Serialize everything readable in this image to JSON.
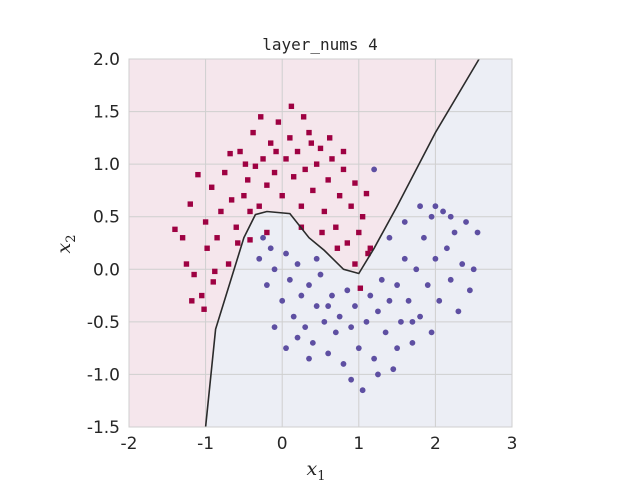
{
  "chart_data": {
    "type": "scatter",
    "title": "layer_nums 4",
    "xlabel": {
      "main": "x",
      "sub": "1"
    },
    "ylabel": {
      "main": "x",
      "sub": "2"
    },
    "xlim": [
      -2,
      3
    ],
    "ylim": [
      -1.5,
      2.0
    ],
    "xticks": [
      -2,
      -1,
      0,
      1,
      2,
      3
    ],
    "xtick_labels": [
      "-2",
      "-1",
      "0",
      "1",
      "2",
      "3"
    ],
    "yticks": [
      -1.5,
      -1.0,
      -0.5,
      0.0,
      0.5,
      1.0,
      1.5,
      2.0
    ],
    "ytick_labels": [
      "-1.5",
      "-1.0",
      "-0.5",
      "0.0",
      "0.5",
      "1.0",
      "1.5",
      "2.0"
    ],
    "grid": true,
    "background_regions": {
      "class_0_color": "#f5e6ec",
      "class_1_color": "#eceef5"
    },
    "decision_boundary": [
      [
        -1.0,
        -1.5
      ],
      [
        -0.87,
        -0.57
      ],
      [
        -0.5,
        0.3
      ],
      [
        -0.35,
        0.52
      ],
      [
        -0.2,
        0.55
      ],
      [
        0.1,
        0.53
      ],
      [
        0.35,
        0.3
      ],
      [
        0.55,
        0.18
      ],
      [
        0.8,
        0.0
      ],
      [
        1.0,
        -0.04
      ],
      [
        1.2,
        0.2
      ],
      [
        1.5,
        0.6
      ],
      [
        2.0,
        1.3
      ],
      [
        2.57,
        2.0
      ]
    ],
    "series": [
      {
        "marker": "square",
        "color": "#9e0142",
        "points": [
          [
            -1.0,
            0.45
          ],
          [
            -0.92,
            0.78
          ],
          [
            -0.85,
            0.3
          ],
          [
            -0.8,
            0.55
          ],
          [
            -0.75,
            0.92
          ],
          [
            -0.7,
            0.05
          ],
          [
            -0.66,
            0.66
          ],
          [
            -0.6,
            0.4
          ],
          [
            -0.55,
            1.12
          ],
          [
            -0.5,
            0.7
          ],
          [
            -0.45,
            0.85
          ],
          [
            -0.42,
            0.28
          ],
          [
            -0.38,
            1.3
          ],
          [
            -0.35,
            0.98
          ],
          [
            -0.3,
            0.6
          ],
          [
            -0.25,
            1.05
          ],
          [
            -0.2,
            0.8
          ],
          [
            -0.15,
            1.2
          ],
          [
            -0.1,
            0.92
          ],
          [
            -0.05,
            1.4
          ],
          [
            0.0,
            0.7
          ],
          [
            0.05,
            1.05
          ],
          [
            0.1,
            1.25
          ],
          [
            0.15,
            0.88
          ],
          [
            0.2,
            1.12
          ],
          [
            0.25,
            0.6
          ],
          [
            0.3,
            0.95
          ],
          [
            0.35,
            1.3
          ],
          [
            0.4,
            0.75
          ],
          [
            0.45,
            1.0
          ],
          [
            0.5,
            1.15
          ],
          [
            0.55,
            0.55
          ],
          [
            0.6,
            0.85
          ],
          [
            0.65,
            1.05
          ],
          [
            0.7,
            0.4
          ],
          [
            0.75,
            0.7
          ],
          [
            0.8,
            0.95
          ],
          [
            0.85,
            0.25
          ],
          [
            0.9,
            0.6
          ],
          [
            0.95,
            0.82
          ],
          [
            1.0,
            0.35
          ],
          [
            1.05,
            0.5
          ],
          [
            1.1,
            0.72
          ],
          [
            1.15,
            0.2
          ],
          [
            -1.3,
            0.3
          ],
          [
            -1.25,
            0.05
          ],
          [
            -1.2,
            0.62
          ],
          [
            -1.15,
            -0.05
          ],
          [
            -1.1,
            0.9
          ],
          [
            -1.05,
            -0.25
          ],
          [
            -0.98,
            0.2
          ],
          [
            -0.9,
            -0.12
          ],
          [
            -1.4,
            0.38
          ],
          [
            -0.58,
            0.25
          ],
          [
            -0.68,
            1.1
          ],
          [
            -0.28,
            1.45
          ],
          [
            0.12,
            1.55
          ],
          [
            0.28,
            1.45
          ],
          [
            0.62,
            1.25
          ],
          [
            0.8,
            1.12
          ],
          [
            -0.48,
            1.0
          ],
          [
            -0.08,
            1.12
          ],
          [
            0.38,
            1.2
          ],
          [
            0.72,
            0.2
          ],
          [
            0.95,
            0.05
          ],
          [
            0.25,
            0.4
          ],
          [
            -0.88,
            -0.02
          ],
          [
            -1.18,
            -0.3
          ],
          [
            -1.02,
            -0.38
          ],
          [
            -0.42,
            0.55
          ],
          [
            0.52,
            0.35
          ],
          [
            1.02,
            -0.18
          ],
          [
            1.12,
            0.15
          ],
          [
            -0.2,
            0.35
          ]
        ]
      },
      {
        "marker": "circle",
        "color": "#5e4fa2",
        "points": [
          [
            -0.3,
            0.1
          ],
          [
            -0.2,
            -0.15
          ],
          [
            -0.15,
            0.2
          ],
          [
            -0.1,
            0.0
          ],
          [
            0.0,
            -0.3
          ],
          [
            0.05,
            0.15
          ],
          [
            0.1,
            -0.1
          ],
          [
            0.15,
            -0.45
          ],
          [
            0.2,
            0.05
          ],
          [
            0.25,
            -0.25
          ],
          [
            0.3,
            -0.55
          ],
          [
            0.35,
            -0.15
          ],
          [
            0.4,
            -0.7
          ],
          [
            0.45,
            -0.35
          ],
          [
            0.5,
            -0.05
          ],
          [
            0.55,
            -0.5
          ],
          [
            0.6,
            -0.8
          ],
          [
            0.65,
            -0.25
          ],
          [
            0.7,
            -0.6
          ],
          [
            0.75,
            -0.45
          ],
          [
            0.8,
            -0.9
          ],
          [
            0.85,
            -0.2
          ],
          [
            0.9,
            -0.55
          ],
          [
            0.95,
            -0.35
          ],
          [
            1.0,
            -0.75
          ],
          [
            1.05,
            -1.15
          ],
          [
            1.1,
            -0.5
          ],
          [
            1.15,
            -0.25
          ],
          [
            1.2,
            -0.85
          ],
          [
            1.25,
            -0.4
          ],
          [
            1.3,
            -0.1
          ],
          [
            1.35,
            -0.6
          ],
          [
            1.4,
            -0.3
          ],
          [
            1.45,
            -0.95
          ],
          [
            1.5,
            -0.15
          ],
          [
            1.55,
            -0.5
          ],
          [
            1.6,
            0.1
          ],
          [
            1.65,
            -0.3
          ],
          [
            1.7,
            -0.7
          ],
          [
            1.75,
            0.0
          ],
          [
            1.8,
            -0.45
          ],
          [
            1.85,
            0.3
          ],
          [
            1.9,
            -0.15
          ],
          [
            1.95,
            0.5
          ],
          [
            2.0,
            0.1
          ],
          [
            2.05,
            -0.3
          ],
          [
            2.1,
            0.55
          ],
          [
            2.15,
            0.2
          ],
          [
            2.2,
            -0.1
          ],
          [
            2.25,
            0.35
          ],
          [
            2.3,
            -0.4
          ],
          [
            2.35,
            0.05
          ],
          [
            2.4,
            0.45
          ],
          [
            1.2,
            0.95
          ],
          [
            1.4,
            0.3
          ],
          [
            1.6,
            0.45
          ],
          [
            1.8,
            0.6
          ],
          [
            2.0,
            0.6
          ],
          [
            1.5,
            -0.75
          ],
          [
            0.9,
            -1.05
          ],
          [
            0.6,
            -0.35
          ],
          [
            0.2,
            -0.65
          ],
          [
            0.35,
            -0.85
          ],
          [
            -0.1,
            -0.55
          ],
          [
            -0.25,
            0.3
          ],
          [
            0.45,
            0.1
          ],
          [
            1.25,
            -1.0
          ],
          [
            1.7,
            -0.5
          ],
          [
            2.5,
            0.0
          ],
          [
            2.55,
            0.35
          ],
          [
            2.45,
            -0.2
          ],
          [
            0.05,
            -0.75
          ],
          [
            1.95,
            -0.6
          ],
          [
            2.2,
            0.5
          ]
        ]
      }
    ]
  }
}
